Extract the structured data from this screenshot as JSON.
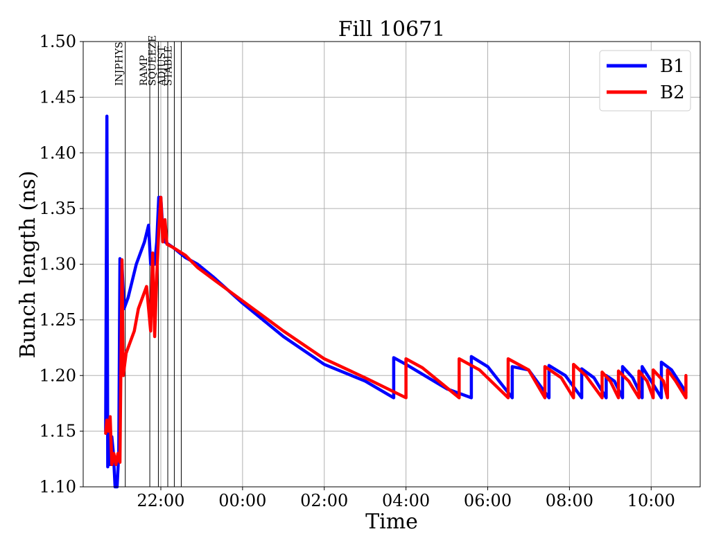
{
  "chart_data": {
    "type": "line",
    "title": "Fill 10671",
    "xlabel": "Time",
    "ylabel": "Bunch length (ns)",
    "ylim": [
      1.1,
      1.5
    ],
    "xlim_hours": [
      20.1,
      35.2
    ],
    "grid": true,
    "legend_placement": "top-right",
    "x_ticks": [
      {
        "hours": 22,
        "label": "22:00"
      },
      {
        "hours": 24,
        "label": "00:00"
      },
      {
        "hours": 26,
        "label": "02:00"
      },
      {
        "hours": 28,
        "label": "04:00"
      },
      {
        "hours": 30,
        "label": "06:00"
      },
      {
        "hours": 32,
        "label": "08:00"
      },
      {
        "hours": 34,
        "label": "10:00"
      }
    ],
    "y_ticks": [
      {
        "value": 1.1,
        "label": "1.10"
      },
      {
        "value": 1.15,
        "label": "1.15"
      },
      {
        "value": 1.2,
        "label": "1.20"
      },
      {
        "value": 1.25,
        "label": "1.25"
      },
      {
        "value": 1.3,
        "label": "1.30"
      },
      {
        "value": 1.35,
        "label": "1.35"
      },
      {
        "value": 1.4,
        "label": "1.40"
      },
      {
        "value": 1.45,
        "label": "1.45"
      },
      {
        "value": 1.5,
        "label": "1.50"
      }
    ],
    "phases": [
      {
        "hours": 21.13,
        "label": "INJPHYS"
      },
      {
        "hours": 21.73,
        "label": "RAMP"
      },
      {
        "hours": 21.94,
        "label": "SQUEEZE"
      },
      {
        "hours": 22.17,
        "label": "ADJUST"
      },
      {
        "hours": 22.33,
        "label": "STABLE"
      },
      {
        "hours": 22.5,
        "label": ""
      }
    ],
    "series": [
      {
        "name": "B1",
        "color": "#0000ff",
        "points": [
          [
            20.65,
            1.15
          ],
          [
            20.68,
            1.433
          ],
          [
            20.7,
            1.118
          ],
          [
            20.73,
            1.15
          ],
          [
            20.76,
            1.12
          ],
          [
            20.8,
            1.145
          ],
          [
            20.84,
            1.13
          ],
          [
            20.88,
            1.1
          ],
          [
            20.93,
            1.1
          ],
          [
            20.97,
            1.13
          ],
          [
            21.0,
            1.305
          ],
          [
            21.05,
            1.3
          ],
          [
            21.1,
            1.26
          ],
          [
            21.2,
            1.27
          ],
          [
            21.3,
            1.285
          ],
          [
            21.4,
            1.3
          ],
          [
            21.5,
            1.31
          ],
          [
            21.6,
            1.32
          ],
          [
            21.7,
            1.335
          ],
          [
            21.75,
            1.3
          ],
          [
            21.8,
            1.305
          ],
          [
            21.85,
            1.3
          ],
          [
            21.9,
            1.32
          ],
          [
            21.95,
            1.36
          ],
          [
            22.0,
            1.36
          ],
          [
            22.05,
            1.33
          ],
          [
            22.1,
            1.32
          ],
          [
            22.3,
            1.315
          ],
          [
            22.6,
            1.306
          ],
          [
            22.9,
            1.3
          ],
          [
            23.3,
            1.288
          ],
          [
            24.0,
            1.265
          ],
          [
            25.0,
            1.235
          ],
          [
            26.0,
            1.21
          ],
          [
            27.0,
            1.195
          ],
          [
            27.7,
            1.18
          ],
          [
            27.7,
            1.216
          ],
          [
            28.0,
            1.21
          ],
          [
            29.0,
            1.188
          ],
          [
            29.6,
            1.18
          ],
          [
            29.6,
            1.217
          ],
          [
            30.0,
            1.208
          ],
          [
            30.6,
            1.18
          ],
          [
            30.6,
            1.208
          ],
          [
            31.0,
            1.205
          ],
          [
            31.5,
            1.18
          ],
          [
            31.5,
            1.209
          ],
          [
            31.9,
            1.2
          ],
          [
            32.3,
            1.18
          ],
          [
            32.3,
            1.206
          ],
          [
            32.6,
            1.198
          ],
          [
            32.9,
            1.18
          ],
          [
            32.9,
            1.2
          ],
          [
            33.1,
            1.195
          ],
          [
            33.3,
            1.18
          ],
          [
            33.3,
            1.208
          ],
          [
            33.55,
            1.198
          ],
          [
            33.78,
            1.18
          ],
          [
            33.78,
            1.208
          ],
          [
            34.0,
            1.195
          ],
          [
            34.25,
            1.18
          ],
          [
            34.25,
            1.212
          ],
          [
            34.5,
            1.205
          ],
          [
            34.85,
            1.185
          ]
        ]
      },
      {
        "name": "B2",
        "color": "#ff0000",
        "points": [
          [
            20.65,
            1.148
          ],
          [
            20.68,
            1.16
          ],
          [
            20.72,
            1.15
          ],
          [
            20.76,
            1.163
          ],
          [
            20.8,
            1.12
          ],
          [
            20.85,
            1.13
          ],
          [
            20.9,
            1.12
          ],
          [
            20.95,
            1.13
          ],
          [
            21.0,
            1.122
          ],
          [
            21.05,
            1.304
          ],
          [
            21.08,
            1.2
          ],
          [
            21.15,
            1.22
          ],
          [
            21.25,
            1.23
          ],
          [
            21.35,
            1.24
          ],
          [
            21.45,
            1.26
          ],
          [
            21.55,
            1.27
          ],
          [
            21.65,
            1.28
          ],
          [
            21.75,
            1.24
          ],
          [
            21.8,
            1.31
          ],
          [
            21.85,
            1.235
          ],
          [
            21.9,
            1.29
          ],
          [
            21.95,
            1.33
          ],
          [
            22.0,
            1.36
          ],
          [
            22.05,
            1.32
          ],
          [
            22.1,
            1.34
          ],
          [
            22.15,
            1.318
          ],
          [
            22.3,
            1.315
          ],
          [
            22.6,
            1.308
          ],
          [
            22.9,
            1.297
          ],
          [
            23.3,
            1.286
          ],
          [
            24.0,
            1.267
          ],
          [
            25.0,
            1.24
          ],
          [
            26.0,
            1.215
          ],
          [
            27.0,
            1.198
          ],
          [
            28.0,
            1.18
          ],
          [
            28.0,
            1.215
          ],
          [
            28.4,
            1.207
          ],
          [
            29.3,
            1.18
          ],
          [
            29.3,
            1.215
          ],
          [
            29.8,
            1.205
          ],
          [
            30.5,
            1.18
          ],
          [
            30.5,
            1.215
          ],
          [
            31.0,
            1.205
          ],
          [
            31.4,
            1.18
          ],
          [
            31.4,
            1.208
          ],
          [
            31.8,
            1.198
          ],
          [
            32.1,
            1.18
          ],
          [
            32.1,
            1.21
          ],
          [
            32.4,
            1.2
          ],
          [
            32.8,
            1.18
          ],
          [
            32.8,
            1.203
          ],
          [
            33.0,
            1.195
          ],
          [
            33.2,
            1.18
          ],
          [
            33.2,
            1.204
          ],
          [
            33.45,
            1.195
          ],
          [
            33.7,
            1.18
          ],
          [
            33.7,
            1.204
          ],
          [
            33.9,
            1.195
          ],
          [
            34.05,
            1.18
          ],
          [
            34.05,
            1.205
          ],
          [
            34.3,
            1.195
          ],
          [
            34.4,
            1.18
          ],
          [
            34.4,
            1.205
          ],
          [
            34.6,
            1.195
          ],
          [
            34.85,
            1.18
          ],
          [
            34.85,
            1.2
          ]
        ]
      }
    ]
  }
}
